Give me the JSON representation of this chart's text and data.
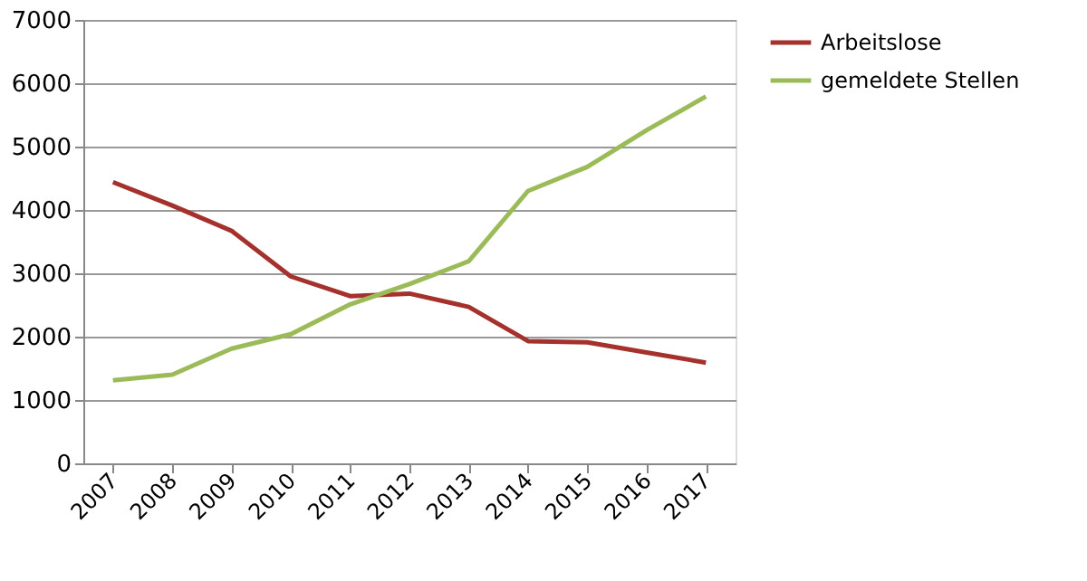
{
  "chart_data": {
    "type": "line",
    "categories": [
      "2007",
      "2008",
      "2009",
      "2010",
      "2011",
      "2012",
      "2013",
      "2014",
      "2015",
      "2016",
      "2017"
    ],
    "series": [
      {
        "name": "Arbeitslose",
        "color": "#a5312d",
        "values": [
          4440,
          4070,
          3670,
          2950,
          2640,
          2680,
          2470,
          1930,
          1910,
          1750,
          1590
        ]
      },
      {
        "name": "gemeldete Stellen",
        "color": "#9bbb59",
        "values": [
          1310,
          1400,
          1810,
          2040,
          2510,
          2830,
          3190,
          4300,
          4680,
          5260,
          5790
        ]
      }
    ],
    "ylim": [
      0,
      7000
    ],
    "yticks": [
      0,
      1000,
      2000,
      3000,
      4000,
      5000,
      6000,
      7000
    ],
    "grid": "y",
    "legend": "right",
    "marker": "none",
    "line_style": "solid"
  }
}
